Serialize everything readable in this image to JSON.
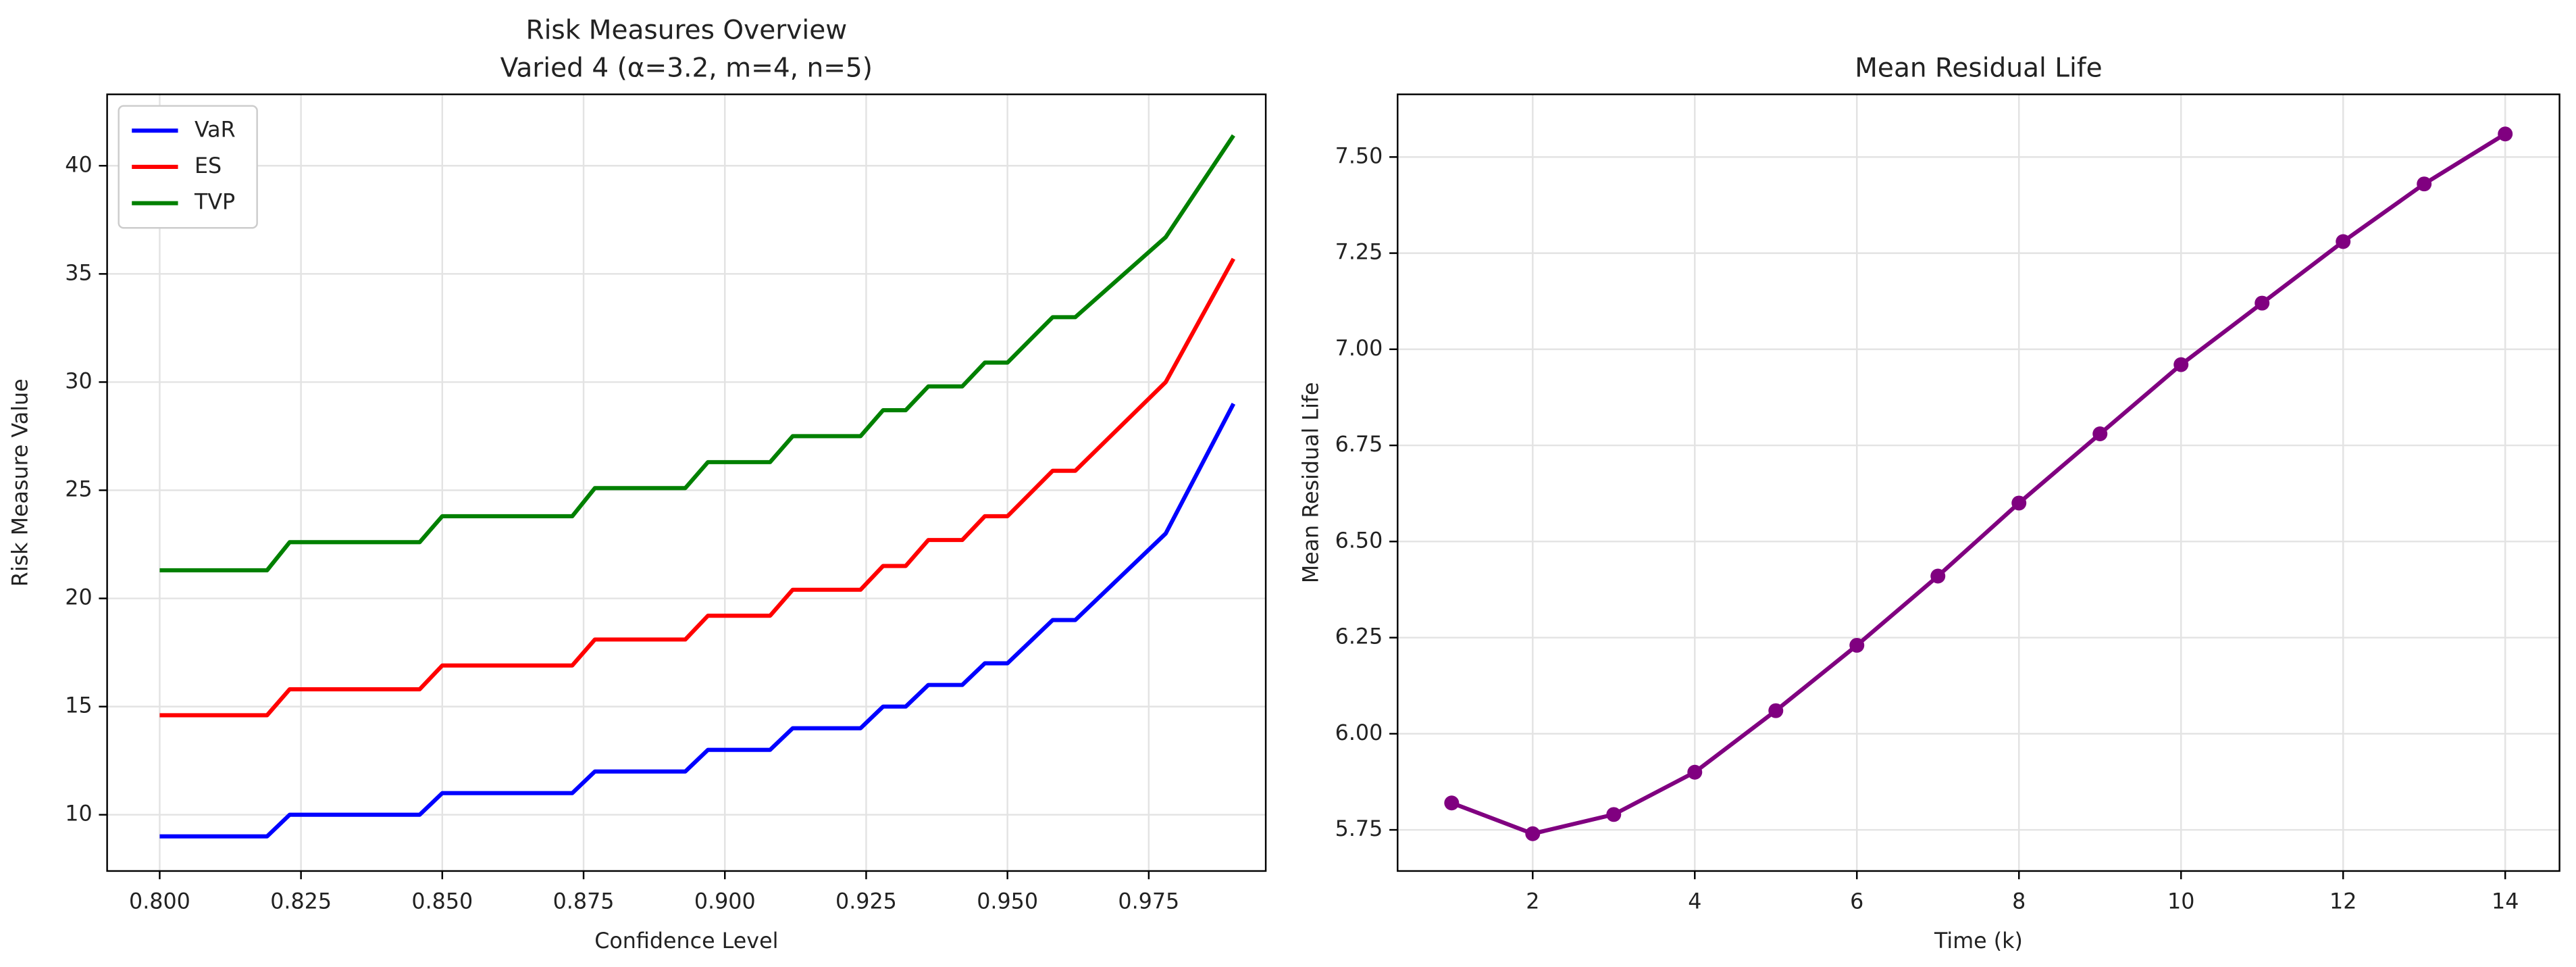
{
  "chart_data": [
    {
      "type": "line",
      "title": "Risk Measures Overview",
      "subtitle": "Varied 4 (α=3.2, m=4, n=5)",
      "xlabel": "Confidence Level",
      "ylabel": "Risk Measure Value",
      "x": [
        0.8,
        0.819,
        0.823,
        0.846,
        0.85,
        0.873,
        0.877,
        0.893,
        0.897,
        0.908,
        0.912,
        0.924,
        0.928,
        0.932,
        0.936,
        0.942,
        0.946,
        0.95,
        0.958,
        0.962,
        0.978,
        0.99
      ],
      "series": [
        {
          "name": "VaR",
          "color": "#0000ff",
          "values": [
            9,
            9,
            10,
            10,
            11,
            11,
            12,
            12,
            13,
            13,
            14,
            14,
            15,
            15,
            16,
            16,
            17,
            17,
            19,
            19,
            23,
            29
          ]
        },
        {
          "name": "ES",
          "color": "#ff0000",
          "values": [
            14.6,
            14.6,
            15.8,
            15.8,
            16.9,
            16.9,
            18.1,
            18.1,
            19.2,
            19.2,
            20.4,
            20.4,
            21.5,
            21.5,
            22.7,
            22.7,
            23.8,
            23.8,
            25.9,
            25.9,
            30.0,
            35.7
          ]
        },
        {
          "name": "TVP",
          "color": "#008000",
          "values": [
            21.3,
            21.3,
            22.6,
            22.6,
            23.8,
            23.8,
            25.1,
            25.1,
            26.3,
            26.3,
            27.5,
            27.5,
            28.7,
            28.7,
            29.8,
            29.8,
            30.9,
            30.9,
            33.0,
            33.0,
            36.7,
            41.4
          ]
        }
      ],
      "xlim": [
        0.7907,
        0.9957
      ],
      "ylim": [
        7.4,
        43.3
      ],
      "xticks": [
        {
          "value": 0.8,
          "label": "0.800"
        },
        {
          "value": 0.825,
          "label": "0.825"
        },
        {
          "value": 0.85,
          "label": "0.850"
        },
        {
          "value": 0.875,
          "label": "0.875"
        },
        {
          "value": 0.9,
          "label": "0.900"
        },
        {
          "value": 0.925,
          "label": "0.925"
        },
        {
          "value": 0.95,
          "label": "0.950"
        },
        {
          "value": 0.975,
          "label": "0.975"
        }
      ],
      "yticks": [
        10,
        15,
        20,
        25,
        30,
        35,
        40
      ],
      "grid": true,
      "legend": "upper left",
      "marker": false
    },
    {
      "type": "line",
      "title": "Mean Residual Life",
      "xlabel": "Time (k)",
      "ylabel": "Mean Residual Life",
      "x": [
        1,
        2,
        3,
        4,
        5,
        6,
        7,
        8,
        9,
        10,
        11,
        12,
        13,
        14
      ],
      "series": [
        {
          "name": "Mean Residual Life",
          "color": "#800080",
          "values": [
            5.82,
            5.74,
            5.79,
            5.9,
            6.06,
            6.23,
            6.41,
            6.6,
            6.78,
            6.96,
            7.12,
            7.28,
            7.43,
            7.56
          ]
        }
      ],
      "xlim": [
        0.333,
        14.67
      ],
      "ylim": [
        5.643,
        7.663
      ],
      "xticks": [
        2,
        4,
        6,
        8,
        10,
        12,
        14
      ],
      "yticks": [
        {
          "value": 5.75,
          "label": "5.75"
        },
        {
          "value": 6.0,
          "label": "6.00"
        },
        {
          "value": 6.25,
          "label": "6.25"
        },
        {
          "value": 6.5,
          "label": "6.50"
        },
        {
          "value": 6.75,
          "label": "6.75"
        },
        {
          "value": 7.0,
          "label": "7.00"
        },
        {
          "value": 7.25,
          "label": "7.25"
        },
        {
          "value": 7.5,
          "label": "7.50"
        }
      ],
      "grid": true,
      "marker": true
    }
  ]
}
